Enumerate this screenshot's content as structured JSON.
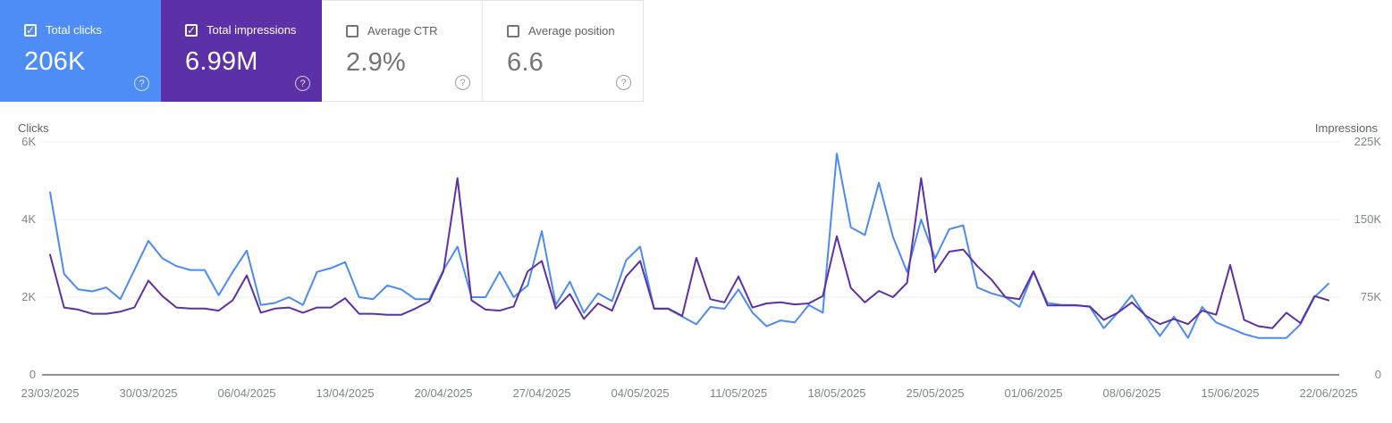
{
  "cards": [
    {
      "label": "Total clicks",
      "value": "206K",
      "checked": true,
      "bg": "#4e8df5",
      "text": "#ffffff"
    },
    {
      "label": "Total impressions",
      "value": "6.99M",
      "checked": true,
      "bg": "#5c31a8",
      "text": "#ffffff"
    },
    {
      "label": "Average CTR",
      "value": "2.9%",
      "checked": false,
      "bg": "#ffffff",
      "text": "#757575"
    },
    {
      "label": "Average position",
      "value": "6.6",
      "checked": false,
      "bg": "#ffffff",
      "text": "#757575"
    }
  ],
  "help_icon": "?",
  "check_icon": "✓",
  "chart_data": {
    "type": "line",
    "grid": true,
    "left_axis": {
      "title": "Clicks",
      "ticks": [
        "0",
        "2K",
        "4K",
        "6K"
      ],
      "min": 0,
      "max": 6000
    },
    "right_axis": {
      "title": "Impressions",
      "ticks": [
        "0",
        "75K",
        "150K",
        "225K"
      ],
      "min": 0,
      "max": 225000
    },
    "x_label_step": 7,
    "x_labels": [
      "23/03/2025",
      "30/03/2025",
      "06/04/2025",
      "13/04/2025",
      "20/04/2025",
      "27/04/2025",
      "04/05/2025",
      "11/05/2025",
      "18/05/2025",
      "25/05/2025",
      "01/06/2025",
      "08/06/2025",
      "15/06/2025",
      "22/06/2025"
    ],
    "series": [
      {
        "name": "Total clicks",
        "axis": "left",
        "color": "#4c8bf5",
        "values": [
          4700,
          2600,
          2200,
          2150,
          2250,
          1950,
          2700,
          3450,
          3000,
          2800,
          2700,
          2700,
          2050,
          2650,
          3200,
          1800,
          1850,
          2000,
          1800,
          2650,
          2750,
          2900,
          2000,
          1950,
          2300,
          2200,
          1950,
          1950,
          2700,
          3300,
          2000,
          2000,
          2650,
          2000,
          2300,
          3700,
          1800,
          2400,
          1600,
          2100,
          1900,
          2950,
          3300,
          1700,
          1700,
          1500,
          1300,
          1750,
          1700,
          2200,
          1600,
          1250,
          1400,
          1350,
          1800,
          1600,
          5700,
          3800,
          3600,
          4950,
          3550,
          2650,
          4000,
          3000,
          3750,
          3850,
          2250,
          2100,
          2000,
          1750,
          2650,
          1850,
          1800,
          1800,
          1750,
          1200,
          1600,
          2050,
          1500,
          1000,
          1500,
          950,
          1750,
          1350,
          1200,
          1050,
          950,
          950,
          950,
          1300,
          2000,
          2350
        ]
      },
      {
        "name": "Total impressions",
        "axis": "right",
        "color": "#5c31a8",
        "values": [
          116000,
          65000,
          63000,
          59000,
          59000,
          61000,
          65000,
          91000,
          76000,
          65000,
          64000,
          64000,
          62000,
          72000,
          96000,
          60000,
          64000,
          65000,
          60000,
          65000,
          65000,
          74000,
          59000,
          59000,
          58000,
          58000,
          64000,
          71000,
          100000,
          190000,
          72000,
          63000,
          62000,
          66000,
          100000,
          110000,
          64000,
          78000,
          54000,
          69000,
          62000,
          95000,
          110000,
          64000,
          64000,
          57000,
          113000,
          73000,
          70000,
          95000,
          65000,
          69000,
          70000,
          68000,
          69000,
          76000,
          134000,
          84000,
          70000,
          81000,
          75000,
          89000,
          190000,
          99000,
          119000,
          121000,
          105000,
          92000,
          75000,
          73000,
          100000,
          67000,
          67000,
          67000,
          66000,
          53000,
          60000,
          70000,
          57000,
          49000,
          54000,
          49000,
          62000,
          58000,
          106000,
          53000,
          47000,
          45000,
          60000,
          50000,
          76000,
          72000
        ]
      }
    ]
  }
}
